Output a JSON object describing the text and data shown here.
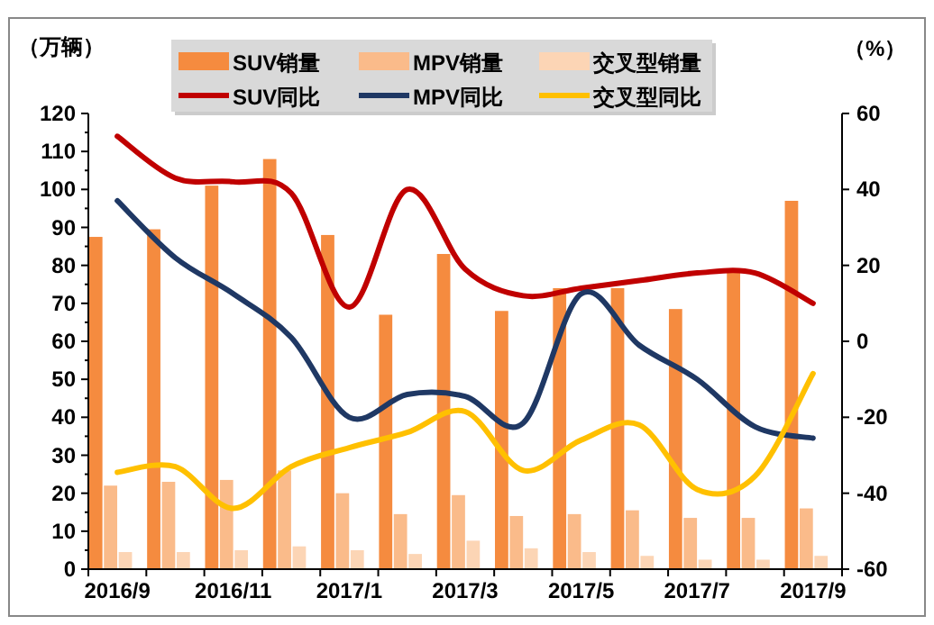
{
  "chart_data": {
    "type": "bar",
    "ylabel": "（万辆）",
    "y2label": "（%）",
    "categories": [
      "2016/9",
      null,
      "2016/11",
      null,
      "2017/1",
      null,
      "2017/3",
      null,
      "2017/5",
      null,
      "2017/7",
      null,
      "2017/9"
    ],
    "series": [
      {
        "name": "SUV销量",
        "color": "#f58b3f",
        "values": [
          87.5,
          89.5,
          101,
          108,
          88,
          67,
          83,
          68,
          74,
          74,
          68.5,
          78.5,
          97
        ]
      },
      {
        "name": "MPV销量",
        "color": "#fabb8a",
        "values": [
          22,
          23,
          23.5,
          26,
          20,
          14.5,
          19.5,
          14,
          14.5,
          15.5,
          13.5,
          13.5,
          16
        ]
      },
      {
        "name": "交叉型销量",
        "color": "#fcd5b5",
        "values": [
          4.5,
          4.5,
          5,
          6,
          5,
          4,
          7.5,
          5.5,
          4.5,
          3.5,
          2.5,
          2.5,
          3.5
        ]
      },
      {
        "name": "SUV同比",
        "type": "line",
        "axis": "y2",
        "color": "#c00000",
        "values": [
          54,
          43,
          42,
          39,
          9,
          40,
          19,
          12,
          14,
          16,
          18,
          18,
          10
        ]
      },
      {
        "name": "MPV同比",
        "type": "line",
        "axis": "y2",
        "color": "#1f3864",
        "values": [
          37,
          22,
          12.5,
          1,
          -20,
          -14,
          -14.5,
          -21.5,
          12.5,
          -1,
          -10,
          -22.5,
          -25.5
        ]
      },
      {
        "name": "交叉型同比",
        "type": "line",
        "axis": "y2",
        "color": "#ffc000",
        "values": [
          -34.5,
          -33,
          -44,
          -33,
          -28,
          -24,
          -18.5,
          -34,
          -26,
          -22,
          -39,
          -35.5,
          -8.5
        ]
      }
    ],
    "ylim": [
      0,
      120
    ],
    "yticks": [
      0,
      10,
      20,
      30,
      40,
      50,
      60,
      70,
      80,
      90,
      100,
      110,
      120
    ],
    "y2lim": [
      -60,
      60
    ],
    "y2ticks": [
      -60,
      -40,
      -20,
      0,
      20,
      40,
      60
    ],
    "legend": "top",
    "grid": false
  }
}
